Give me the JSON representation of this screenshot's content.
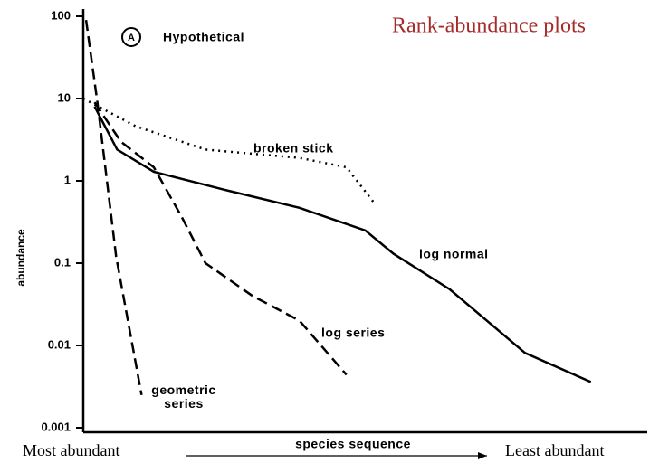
{
  "chart_data": {
    "type": "line",
    "title": "Rank-abundance plots",
    "panel_letter": "A",
    "panel_label": "Hypothetical",
    "y_label": "abundance",
    "x_label": "species sequence",
    "x_start_label": "Most abundant",
    "x_end_label": "Least abundant",
    "yscale": "log",
    "ylim": [
      0.001,
      100
    ],
    "yticks": [
      100,
      10,
      1,
      0.1,
      0.01,
      0.001
    ],
    "xlim": [
      0,
      60
    ],
    "series": [
      {
        "name": "geometric series",
        "color": "#000000",
        "style": "dashed",
        "x": [
          0.3,
          1.5,
          3.5,
          6.2
        ],
        "values": [
          90,
          9,
          0.12,
          0.0025
        ]
      },
      {
        "name": "log series",
        "color": "#000000",
        "style": "dashed",
        "x": [
          1.2,
          4.0,
          7.5,
          10.5,
          13.0,
          18.0,
          23.0,
          28.0
        ],
        "values": [
          9,
          3,
          1.46,
          0.36,
          0.1,
          0.04,
          0.02,
          0.0044
        ]
      },
      {
        "name": "log normal",
        "color": "#000000",
        "style": "solid",
        "x": [
          1.2,
          3.6,
          7.5,
          15.0,
          23.0,
          30.0,
          33.0,
          39.0,
          47.0,
          54.0
        ],
        "values": [
          8,
          2.4,
          1.29,
          0.78,
          0.47,
          0.25,
          0.13,
          0.048,
          0.0081,
          0.0036
        ]
      },
      {
        "name": "broken stick",
        "color": "#000000",
        "style": "dotted",
        "x": [
          0,
          5.6,
          13.0,
          23.0,
          28.0,
          31.0
        ],
        "values": [
          10,
          4.6,
          2.4,
          1.9,
          1.46,
          0.53
        ]
      }
    ]
  }
}
